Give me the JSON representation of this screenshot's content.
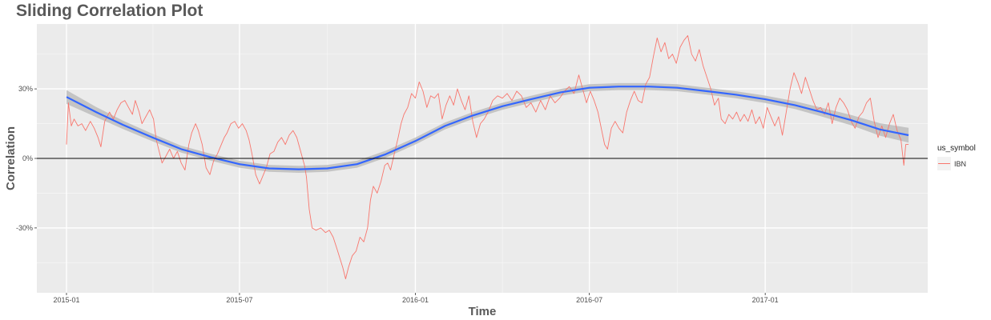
{
  "chart_data": {
    "type": "line",
    "title": "Sliding Correlation Plot",
    "xlabel": "Time",
    "ylabel": "Correlation",
    "x_tick_labels": [
      "2015-01",
      "2015-07",
      "2016-01",
      "2016-07",
      "2017-01"
    ],
    "x_tick_dates": [
      "2015-01-01",
      "2015-07-01",
      "2016-01-01",
      "2016-07-01",
      "2017-01-01"
    ],
    "y_tick_labels": [
      "30%",
      "0%",
      "-30%"
    ],
    "y_tick_values": [
      0.3,
      0.0,
      -0.3
    ],
    "xlim": [
      "2014-12-01",
      "2017-06-20"
    ],
    "ylim": [
      -0.58,
      0.58
    ],
    "grid": true,
    "horizontal_reference_line": 0.0,
    "legend": {
      "title": "us_symbol",
      "position": "right"
    },
    "series": [
      {
        "name": "IBN",
        "color": "#F8766D",
        "points": [
          [
            "2015-01-01",
            0.06
          ],
          [
            "2015-01-03",
            0.24
          ],
          [
            "2015-01-06",
            0.14
          ],
          [
            "2015-01-09",
            0.17
          ],
          [
            "2015-01-13",
            0.14
          ],
          [
            "2015-01-17",
            0.15
          ],
          [
            "2015-01-21",
            0.12
          ],
          [
            "2015-01-26",
            0.16
          ],
          [
            "2015-01-30",
            0.13
          ],
          [
            "2015-02-03",
            0.09
          ],
          [
            "2015-02-06",
            0.05
          ],
          [
            "2015-02-10",
            0.16
          ],
          [
            "2015-02-15",
            0.2
          ],
          [
            "2015-02-19",
            0.17
          ],
          [
            "2015-02-23",
            0.21
          ],
          [
            "2015-02-27",
            0.24
          ],
          [
            "2015-03-03",
            0.25
          ],
          [
            "2015-03-07",
            0.22
          ],
          [
            "2015-03-11",
            0.19
          ],
          [
            "2015-03-14",
            0.25
          ],
          [
            "2015-03-18",
            0.2
          ],
          [
            "2015-03-21",
            0.15
          ],
          [
            "2015-03-25",
            0.18
          ],
          [
            "2015-03-29",
            0.21
          ],
          [
            "2015-04-02",
            0.17
          ],
          [
            "2015-04-05",
            0.08
          ],
          [
            "2015-04-08",
            0.03
          ],
          [
            "2015-04-11",
            -0.02
          ],
          [
            "2015-04-15",
            0.01
          ],
          [
            "2015-04-19",
            0.04
          ],
          [
            "2015-04-23",
            0.0
          ],
          [
            "2015-04-27",
            0.03
          ],
          [
            "2015-05-01",
            -0.02
          ],
          [
            "2015-05-05",
            -0.05
          ],
          [
            "2015-05-09",
            0.06
          ],
          [
            "2015-05-12",
            0.11
          ],
          [
            "2015-05-16",
            0.15
          ],
          [
            "2015-05-19",
            0.12
          ],
          [
            "2015-05-23",
            0.06
          ],
          [
            "2015-05-27",
            -0.04
          ],
          [
            "2015-05-31",
            -0.07
          ],
          [
            "2015-06-04",
            -0.01
          ],
          [
            "2015-06-08",
            0.02
          ],
          [
            "2015-06-12",
            0.06
          ],
          [
            "2015-06-15",
            0.09
          ],
          [
            "2015-06-18",
            0.11
          ],
          [
            "2015-06-22",
            0.15
          ],
          [
            "2015-06-26",
            0.16
          ],
          [
            "2015-06-30",
            0.13
          ],
          [
            "2015-07-04",
            0.15
          ],
          [
            "2015-07-08",
            0.12
          ],
          [
            "2015-07-11",
            0.08
          ],
          [
            "2015-07-14",
            0.02
          ],
          [
            "2015-07-18",
            -0.07
          ],
          [
            "2015-07-22",
            -0.11
          ],
          [
            "2015-07-25",
            -0.08
          ],
          [
            "2015-07-29",
            -0.04
          ],
          [
            "2015-08-02",
            0.02
          ],
          [
            "2015-08-06",
            0.03
          ],
          [
            "2015-08-10",
            0.07
          ],
          [
            "2015-08-14",
            0.09
          ],
          [
            "2015-08-18",
            0.06
          ],
          [
            "2015-08-22",
            0.1
          ],
          [
            "2015-08-26",
            0.12
          ],
          [
            "2015-08-30",
            0.09
          ],
          [
            "2015-09-03",
            0.03
          ],
          [
            "2015-09-07",
            -0.03
          ],
          [
            "2015-09-09",
            -0.08
          ],
          [
            "2015-09-12",
            -0.22
          ],
          [
            "2015-09-15",
            -0.3
          ],
          [
            "2015-09-19",
            -0.31
          ],
          [
            "2015-09-24",
            -0.3
          ],
          [
            "2015-09-29",
            -0.32
          ],
          [
            "2015-10-03",
            -0.31
          ],
          [
            "2015-10-07",
            -0.34
          ],
          [
            "2015-10-11",
            -0.39
          ],
          [
            "2015-10-14",
            -0.43
          ],
          [
            "2015-10-17",
            -0.47
          ],
          [
            "2015-10-20",
            -0.52
          ],
          [
            "2015-10-23",
            -0.47
          ],
          [
            "2015-10-27",
            -0.42
          ],
          [
            "2015-10-31",
            -0.4
          ],
          [
            "2015-11-04",
            -0.34
          ],
          [
            "2015-11-08",
            -0.36
          ],
          [
            "2015-11-12",
            -0.3
          ],
          [
            "2015-11-15",
            -0.18
          ],
          [
            "2015-11-18",
            -0.12
          ],
          [
            "2015-11-22",
            -0.15
          ],
          [
            "2015-11-26",
            -0.1
          ],
          [
            "2015-11-30",
            -0.03
          ],
          [
            "2015-12-03",
            -0.02
          ],
          [
            "2015-12-06",
            -0.05
          ],
          [
            "2015-12-10",
            0.02
          ],
          [
            "2015-12-14",
            0.09
          ],
          [
            "2015-12-17",
            0.15
          ],
          [
            "2015-12-20",
            0.19
          ],
          [
            "2015-12-24",
            0.22
          ],
          [
            "2015-12-28",
            0.28
          ],
          [
            "2016-01-01",
            0.26
          ],
          [
            "2016-01-05",
            0.33
          ],
          [
            "2016-01-09",
            0.29
          ],
          [
            "2016-01-13",
            0.22
          ],
          [
            "2016-01-17",
            0.27
          ],
          [
            "2016-01-21",
            0.26
          ],
          [
            "2016-01-25",
            0.28
          ],
          [
            "2016-01-29",
            0.17
          ],
          [
            "2016-02-02",
            0.23
          ],
          [
            "2016-02-06",
            0.27
          ],
          [
            "2016-02-10",
            0.23
          ],
          [
            "2016-02-14",
            0.3
          ],
          [
            "2016-02-18",
            0.25
          ],
          [
            "2016-02-22",
            0.21
          ],
          [
            "2016-02-26",
            0.27
          ],
          [
            "2016-03-01",
            0.16
          ],
          [
            "2016-03-05",
            0.09
          ],
          [
            "2016-03-09",
            0.15
          ],
          [
            "2016-03-13",
            0.17
          ],
          [
            "2016-03-17",
            0.2
          ],
          [
            "2016-03-22",
            0.25
          ],
          [
            "2016-03-27",
            0.27
          ],
          [
            "2016-04-01",
            0.26
          ],
          [
            "2016-04-06",
            0.28
          ],
          [
            "2016-04-11",
            0.25
          ],
          [
            "2016-04-16",
            0.29
          ],
          [
            "2016-04-21",
            0.27
          ],
          [
            "2016-04-26",
            0.22
          ],
          [
            "2016-05-01",
            0.24
          ],
          [
            "2016-05-06",
            0.2
          ],
          [
            "2016-05-11",
            0.25
          ],
          [
            "2016-05-16",
            0.21
          ],
          [
            "2016-05-21",
            0.27
          ],
          [
            "2016-05-26",
            0.24
          ],
          [
            "2016-05-31",
            0.26
          ],
          [
            "2016-06-05",
            0.29
          ],
          [
            "2016-06-10",
            0.31
          ],
          [
            "2016-06-15",
            0.28
          ],
          [
            "2016-06-20",
            0.36
          ],
          [
            "2016-06-24",
            0.3
          ],
          [
            "2016-06-28",
            0.24
          ],
          [
            "2016-07-02",
            0.29
          ],
          [
            "2016-07-06",
            0.25
          ],
          [
            "2016-07-10",
            0.2
          ],
          [
            "2016-07-14",
            0.12
          ],
          [
            "2016-07-17",
            0.06
          ],
          [
            "2016-07-20",
            0.04
          ],
          [
            "2016-07-24",
            0.13
          ],
          [
            "2016-07-28",
            0.16
          ],
          [
            "2016-08-01",
            0.13
          ],
          [
            "2016-08-05",
            0.11
          ],
          [
            "2016-08-09",
            0.2
          ],
          [
            "2016-08-13",
            0.25
          ],
          [
            "2016-08-17",
            0.29
          ],
          [
            "2016-08-21",
            0.25
          ],
          [
            "2016-08-25",
            0.24
          ],
          [
            "2016-08-29",
            0.32
          ],
          [
            "2016-09-02",
            0.35
          ],
          [
            "2016-09-06",
            0.44
          ],
          [
            "2016-09-10",
            0.52
          ],
          [
            "2016-09-14",
            0.46
          ],
          [
            "2016-09-18",
            0.5
          ],
          [
            "2016-09-22",
            0.43
          ],
          [
            "2016-09-26",
            0.45
          ],
          [
            "2016-09-30",
            0.41
          ],
          [
            "2016-10-04",
            0.48
          ],
          [
            "2016-10-08",
            0.51
          ],
          [
            "2016-10-12",
            0.53
          ],
          [
            "2016-10-16",
            0.45
          ],
          [
            "2016-10-20",
            0.42
          ],
          [
            "2016-10-24",
            0.47
          ],
          [
            "2016-10-28",
            0.4
          ],
          [
            "2016-11-01",
            0.35
          ],
          [
            "2016-11-05",
            0.3
          ],
          [
            "2016-11-09",
            0.23
          ],
          [
            "2016-11-13",
            0.26
          ],
          [
            "2016-11-16",
            0.17
          ],
          [
            "2016-11-20",
            0.15
          ],
          [
            "2016-11-24",
            0.19
          ],
          [
            "2016-11-28",
            0.17
          ],
          [
            "2016-12-02",
            0.2
          ],
          [
            "2016-12-06",
            0.16
          ],
          [
            "2016-12-10",
            0.19
          ],
          [
            "2016-12-14",
            0.16
          ],
          [
            "2016-12-18",
            0.21
          ],
          [
            "2016-12-22",
            0.15
          ],
          [
            "2016-12-26",
            0.18
          ],
          [
            "2016-12-30",
            0.13
          ],
          [
            "2017-01-03",
            0.22
          ],
          [
            "2017-01-07",
            0.18
          ],
          [
            "2017-01-11",
            0.14
          ],
          [
            "2017-01-15",
            0.18
          ],
          [
            "2017-01-19",
            0.1
          ],
          [
            "2017-01-23",
            0.2
          ],
          [
            "2017-01-27",
            0.3
          ],
          [
            "2017-01-31",
            0.37
          ],
          [
            "2017-02-04",
            0.33
          ],
          [
            "2017-02-08",
            0.28
          ],
          [
            "2017-02-12",
            0.35
          ],
          [
            "2017-02-16",
            0.3
          ],
          [
            "2017-02-20",
            0.25
          ],
          [
            "2017-02-24",
            0.21
          ],
          [
            "2017-02-28",
            0.22
          ],
          [
            "2017-03-04",
            0.19
          ],
          [
            "2017-03-08",
            0.24
          ],
          [
            "2017-03-12",
            0.15
          ],
          [
            "2017-03-16",
            0.22
          ],
          [
            "2017-03-20",
            0.26
          ],
          [
            "2017-03-24",
            0.24
          ],
          [
            "2017-03-28",
            0.21
          ],
          [
            "2017-04-01",
            0.16
          ],
          [
            "2017-04-05",
            0.13
          ],
          [
            "2017-04-09",
            0.18
          ],
          [
            "2017-04-13",
            0.2
          ],
          [
            "2017-04-17",
            0.24
          ],
          [
            "2017-04-21",
            0.26
          ],
          [
            "2017-04-25",
            0.16
          ],
          [
            "2017-04-29",
            0.09
          ],
          [
            "2017-05-03",
            0.14
          ],
          [
            "2017-05-07",
            0.09
          ],
          [
            "2017-05-11",
            0.15
          ],
          [
            "2017-05-15",
            0.19
          ],
          [
            "2017-05-19",
            0.12
          ],
          [
            "2017-05-23",
            0.08
          ],
          [
            "2017-05-26",
            -0.03
          ],
          [
            "2017-05-28",
            0.06
          ],
          [
            "2017-05-31",
            0.06
          ]
        ]
      }
    ],
    "smooth_trend": {
      "color": "#3366FF",
      "band_color": "#BDBDBD",
      "points": [
        [
          "2015-01-01",
          0.265,
          0.03
        ],
        [
          "2015-02-01",
          0.2,
          0.022
        ],
        [
          "2015-03-01",
          0.145,
          0.018
        ],
        [
          "2015-04-01",
          0.09,
          0.016
        ],
        [
          "2015-05-01",
          0.04,
          0.015
        ],
        [
          "2015-06-01",
          0.005,
          0.015
        ],
        [
          "2015-07-01",
          -0.025,
          0.015
        ],
        [
          "2015-08-01",
          -0.043,
          0.015
        ],
        [
          "2015-09-01",
          -0.047,
          0.015
        ],
        [
          "2015-10-01",
          -0.043,
          0.015
        ],
        [
          "2015-11-01",
          -0.025,
          0.015
        ],
        [
          "2015-12-01",
          0.018,
          0.015
        ],
        [
          "2016-01-01",
          0.075,
          0.015
        ],
        [
          "2016-02-01",
          0.14,
          0.015
        ],
        [
          "2016-03-01",
          0.185,
          0.015
        ],
        [
          "2016-04-01",
          0.225,
          0.015
        ],
        [
          "2016-05-01",
          0.255,
          0.015
        ],
        [
          "2016-06-01",
          0.285,
          0.015
        ],
        [
          "2016-07-01",
          0.305,
          0.015
        ],
        [
          "2016-08-01",
          0.31,
          0.015
        ],
        [
          "2016-09-01",
          0.31,
          0.015
        ],
        [
          "2016-10-01",
          0.305,
          0.015
        ],
        [
          "2016-11-01",
          0.29,
          0.015
        ],
        [
          "2016-12-01",
          0.275,
          0.015
        ],
        [
          "2017-01-01",
          0.255,
          0.016
        ],
        [
          "2017-02-01",
          0.23,
          0.017
        ],
        [
          "2017-03-01",
          0.2,
          0.019
        ],
        [
          "2017-04-01",
          0.165,
          0.022
        ],
        [
          "2017-05-01",
          0.125,
          0.027
        ],
        [
          "2017-05-31",
          0.1,
          0.032
        ]
      ]
    }
  }
}
